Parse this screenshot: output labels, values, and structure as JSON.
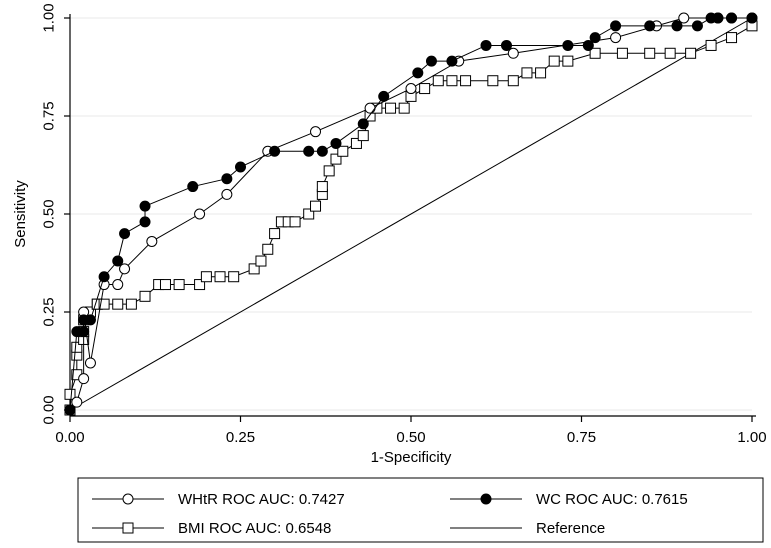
{
  "chart_data": {
    "type": "line",
    "xlabel": "1-Specificity",
    "ylabel": "Sensitivity",
    "xlim": [
      0,
      1
    ],
    "ylim": [
      0,
      1
    ],
    "xticks": [
      "0.00",
      "0.25",
      "0.50",
      "0.75",
      "1.00"
    ],
    "yticks": [
      "0.00",
      "0.25",
      "0.50",
      "0.75",
      "1.00"
    ],
    "grid": "horizontal",
    "legend_position": "bottom",
    "series": [
      {
        "name": "WHtR ROC AUC: 0.7427",
        "marker": "hollow-circle",
        "x": [
          0.0,
          0.01,
          0.02,
          0.02,
          0.03,
          0.05,
          0.07,
          0.08,
          0.12,
          0.19,
          0.23,
          0.29,
          0.36,
          0.44,
          0.5,
          0.57,
          0.65,
          0.8,
          0.86,
          0.9,
          0.95,
          0.97,
          1.0
        ],
        "y": [
          0.0,
          0.02,
          0.08,
          0.25,
          0.12,
          0.32,
          0.32,
          0.36,
          0.43,
          0.5,
          0.55,
          0.66,
          0.71,
          0.77,
          0.82,
          0.89,
          0.91,
          0.95,
          0.98,
          1.0,
          1.0,
          1.0,
          1.0
        ]
      },
      {
        "name": "WC ROC AUC: 0.7615",
        "marker": "filled-circle",
        "x": [
          0.0,
          0.01,
          0.02,
          0.02,
          0.03,
          0.05,
          0.07,
          0.08,
          0.11,
          0.11,
          0.18,
          0.23,
          0.25,
          0.3,
          0.35,
          0.37,
          0.39,
          0.43,
          0.46,
          0.51,
          0.53,
          0.56,
          0.61,
          0.64,
          0.73,
          0.76,
          0.77,
          0.8,
          0.85,
          0.89,
          0.92,
          0.94,
          0.95,
          0.97,
          1.0
        ],
        "y": [
          0.0,
          0.2,
          0.2,
          0.23,
          0.23,
          0.34,
          0.38,
          0.45,
          0.48,
          0.52,
          0.57,
          0.59,
          0.62,
          0.66,
          0.66,
          0.66,
          0.68,
          0.73,
          0.8,
          0.86,
          0.89,
          0.89,
          0.93,
          0.93,
          0.93,
          0.93,
          0.95,
          0.98,
          0.98,
          0.98,
          0.98,
          1.0,
          1.0,
          1.0,
          1.0
        ]
      },
      {
        "name": "BMI ROC AUC: 0.6548",
        "marker": "hollow-square",
        "x": [
          0.0,
          0.0,
          0.01,
          0.01,
          0.01,
          0.02,
          0.02,
          0.02,
          0.03,
          0.04,
          0.04,
          0.05,
          0.07,
          0.09,
          0.11,
          0.13,
          0.14,
          0.16,
          0.19,
          0.2,
          0.22,
          0.24,
          0.27,
          0.28,
          0.29,
          0.3,
          0.31,
          0.32,
          0.33,
          0.35,
          0.36,
          0.37,
          0.37,
          0.38,
          0.39,
          0.4,
          0.42,
          0.43,
          0.44,
          0.45,
          0.47,
          0.49,
          0.5,
          0.52,
          0.54,
          0.56,
          0.58,
          0.62,
          0.65,
          0.67,
          0.69,
          0.71,
          0.73,
          0.77,
          0.81,
          0.85,
          0.88,
          0.91,
          0.94,
          0.97,
          1.0
        ],
        "y": [
          0.0,
          0.04,
          0.09,
          0.14,
          0.16,
          0.18,
          0.2,
          0.23,
          0.25,
          0.27,
          0.27,
          0.27,
          0.27,
          0.27,
          0.29,
          0.32,
          0.32,
          0.32,
          0.32,
          0.34,
          0.34,
          0.34,
          0.36,
          0.38,
          0.41,
          0.45,
          0.48,
          0.48,
          0.48,
          0.5,
          0.52,
          0.55,
          0.57,
          0.61,
          0.64,
          0.66,
          0.68,
          0.7,
          0.75,
          0.77,
          0.77,
          0.77,
          0.8,
          0.82,
          0.84,
          0.84,
          0.84,
          0.84,
          0.84,
          0.86,
          0.86,
          0.89,
          0.89,
          0.91,
          0.91,
          0.91,
          0.91,
          0.91,
          0.93,
          0.95,
          0.98
        ]
      },
      {
        "name": "Reference",
        "marker": "none",
        "x": [
          0,
          1
        ],
        "y": [
          0,
          1
        ]
      }
    ]
  }
}
